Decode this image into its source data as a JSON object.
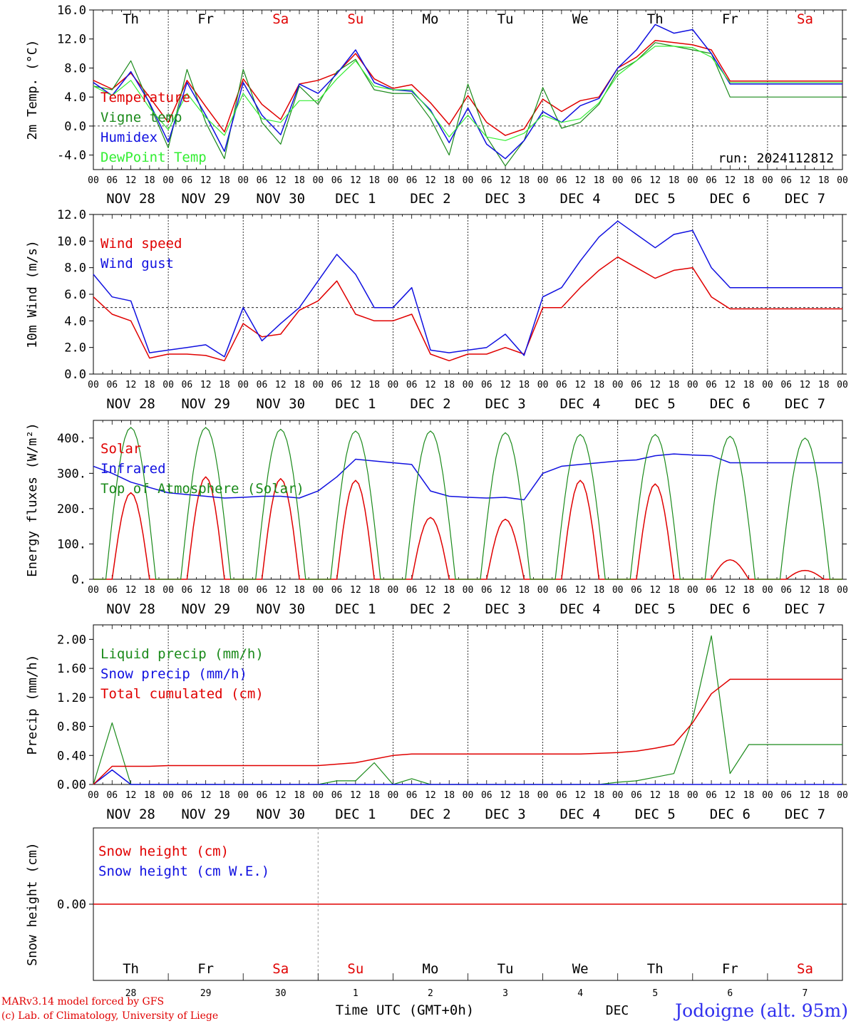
{
  "credits": {
    "line1": "MARv3.14 model forced by GFS",
    "line2": "(c) Lab. of Climatology, University of Liege"
  },
  "footer": {
    "time_label": "Time UTC (GMT+0h)",
    "dec_label": "DEC",
    "location": "Jodoigne (alt. 95m)"
  },
  "days": {
    "weekdays": [
      "Th",
      "Fr",
      "Sa",
      "Su",
      "Mo",
      "Tu",
      "We",
      "Th",
      "Fr",
      "Sa"
    ],
    "weekend": [
      false,
      false,
      true,
      true,
      false,
      false,
      false,
      false,
      false,
      true
    ],
    "dates": [
      "NOV 28",
      "NOV 29",
      "NOV 30",
      "DEC  1",
      "DEC  2",
      "DEC  3",
      "DEC  4",
      "DEC  5",
      "DEC  6",
      "DEC  7"
    ],
    "day_numbers": [
      "28",
      "29",
      "30",
      "1",
      "2",
      "3",
      "4",
      "5",
      "6",
      "7"
    ],
    "hour_ticks": [
      "00",
      "06",
      "12",
      "18"
    ],
    "final_hour": "00"
  },
  "colors": {
    "red": "#e00000",
    "green": "#1a8a1a",
    "blue": "#1010e0",
    "light_green": "#33ee33",
    "weekend_text": "#e00000",
    "text": "#000000"
  },
  "chart_data": [
    {
      "type": "line",
      "ylabel": "2m Temp. (°C)",
      "ylim": [
        -6,
        16
      ],
      "yticks": [
        "-4.0",
        "0.0",
        "4.0",
        "8.0",
        "12.0",
        "16.0"
      ],
      "reference_line": 0,
      "annotation": "run: 2024112812",
      "x_hours": [
        0,
        6,
        12,
        18,
        24,
        30,
        36,
        42,
        48,
        54,
        60,
        66,
        72,
        78,
        84,
        90,
        96,
        102,
        108,
        114,
        120,
        126,
        132,
        138,
        144,
        150,
        156,
        162,
        168,
        174,
        180,
        186,
        192,
        198,
        204,
        210,
        216,
        222,
        228,
        234,
        240
      ],
      "series": [
        {
          "name": "Temperature",
          "color": "red",
          "values": [
            6.3,
            5.1,
            7.3,
            4.0,
            0.5,
            6.3,
            2.7,
            -0.8,
            6.5,
            3.0,
            0.9,
            5.8,
            6.3,
            7.3,
            10.0,
            6.5,
            5.2,
            5.7,
            3.2,
            0.2,
            4.2,
            0.5,
            -1.3,
            -0.4,
            3.7,
            2.0,
            3.5,
            4.0,
            8.0,
            9.5,
            11.8,
            11.5,
            11.2,
            10.5,
            6.2,
            6.2,
            6.2,
            6.2,
            6.2,
            6.2,
            6.2
          ]
        },
        {
          "name": "Vigne temp",
          "color": "green",
          "values": [
            5.5,
            5.0,
            9.0,
            3.0,
            -3.0,
            7.8,
            0.5,
            -4.5,
            7.8,
            0.5,
            -2.5,
            5.5,
            3.0,
            7.5,
            9.2,
            5.0,
            4.5,
            4.5,
            1.0,
            -4.0,
            5.8,
            -1.5,
            -5.5,
            -2.0,
            5.3,
            -0.3,
            0.5,
            3.0,
            7.5,
            9.0,
            11.5,
            11.0,
            10.5,
            10.0,
            4.0,
            4.0,
            4.0,
            4.0,
            4.0,
            4.0,
            4.0
          ]
        },
        {
          "name": "Humidex",
          "color": "blue",
          "values": [
            6.0,
            4.2,
            7.5,
            3.2,
            -2.2,
            6.0,
            1.5,
            -3.5,
            6.0,
            1.5,
            -1.2,
            5.8,
            4.5,
            7.2,
            10.5,
            6.0,
            5.0,
            4.8,
            2.2,
            -2.3,
            2.5,
            -2.5,
            -4.5,
            -2.0,
            2.0,
            0.5,
            2.8,
            3.8,
            8.0,
            10.5,
            14.0,
            12.8,
            13.3,
            10.0,
            5.8,
            5.8,
            5.8,
            5.8,
            5.8,
            5.8,
            5.8
          ]
        },
        {
          "name": "DewPoint Temp",
          "color": "light_green",
          "values": [
            5.5,
            4.2,
            6.3,
            2.5,
            -0.5,
            4.5,
            1.2,
            -1.3,
            4.5,
            1.0,
            0.5,
            3.5,
            3.5,
            6.5,
            9.0,
            5.5,
            5.0,
            5.0,
            2.0,
            -1.5,
            1.5,
            -1.5,
            -2.0,
            -1.0,
            1.5,
            0.5,
            1.0,
            3.2,
            7.0,
            9.0,
            11.0,
            11.0,
            10.8,
            9.5,
            6.0,
            6.0,
            6.0,
            6.0,
            6.0,
            6.0,
            6.0
          ]
        }
      ]
    },
    {
      "type": "line",
      "ylabel": "10m Wind (m/s)",
      "ylim": [
        0,
        12
      ],
      "yticks": [
        "0.0",
        "2.0",
        "4.0",
        "6.0",
        "8.0",
        "10.0",
        "12.0"
      ],
      "reference_line": 5,
      "x_hours": [
        0,
        6,
        12,
        18,
        24,
        30,
        36,
        42,
        48,
        54,
        60,
        66,
        72,
        78,
        84,
        90,
        96,
        102,
        108,
        114,
        120,
        126,
        132,
        138,
        144,
        150,
        156,
        162,
        168,
        174,
        180,
        186,
        192,
        198,
        204,
        210,
        216,
        222,
        228,
        234,
        240
      ],
      "series": [
        {
          "name": "Wind speed",
          "color": "red",
          "values": [
            5.8,
            4.5,
            4.0,
            1.2,
            1.5,
            1.5,
            1.4,
            1.0,
            3.8,
            2.8,
            3.0,
            4.8,
            5.5,
            7.0,
            4.5,
            4.0,
            4.0,
            4.5,
            1.5,
            1.0,
            1.5,
            1.5,
            2.0,
            1.5,
            5.0,
            5.0,
            6.5,
            7.8,
            8.8,
            8.0,
            7.2,
            7.8,
            8.0,
            5.8,
            4.9,
            4.9,
            4.9,
            4.9,
            4.9,
            4.9,
            4.9
          ]
        },
        {
          "name": "Wind gust",
          "color": "blue",
          "values": [
            7.5,
            5.8,
            5.5,
            1.6,
            1.8,
            2.0,
            2.2,
            1.3,
            5.0,
            2.5,
            3.8,
            5.0,
            7.0,
            9.0,
            7.5,
            5.0,
            5.0,
            6.5,
            1.8,
            1.6,
            1.8,
            2.0,
            3.0,
            1.4,
            5.8,
            6.5,
            8.5,
            10.3,
            11.5,
            10.5,
            9.5,
            10.5,
            10.8,
            8.0,
            6.5,
            6.5,
            6.5,
            6.5,
            6.5,
            6.5,
            6.5
          ]
        }
      ]
    },
    {
      "type": "line",
      "ylabel": "Energy fluxes (W/m²)",
      "ylim": [
        0,
        450
      ],
      "yticks": [
        "0.",
        "100.",
        "200.",
        "300.",
        "400."
      ],
      "x_hours": [
        0,
        6,
        12,
        18,
        24,
        30,
        36,
        42,
        48,
        54,
        60,
        66,
        72,
        78,
        84,
        90,
        96,
        102,
        108,
        114,
        120,
        126,
        132,
        138,
        144,
        150,
        156,
        162,
        168,
        174,
        180,
        186,
        192,
        198,
        204,
        210,
        216,
        222,
        228,
        234,
        240
      ],
      "series": [
        {
          "name": "Solar",
          "color": "red",
          "peaks": [
            245,
            290,
            285,
            280,
            175,
            170,
            280,
            270,
            55,
            25
          ]
        },
        {
          "name": "Infrared",
          "color": "blue",
          "values": [
            320,
            300,
            275,
            260,
            245,
            240,
            235,
            230,
            232,
            235,
            235,
            230,
            250,
            290,
            340,
            335,
            330,
            325,
            250,
            235,
            232,
            230,
            232,
            225,
            300,
            320,
            325,
            330,
            335,
            338,
            350,
            355,
            352,
            350,
            330,
            330,
            330,
            330,
            330,
            330,
            330
          ]
        },
        {
          "name": "Top of Atmosphere (Solar)",
          "color": "green",
          "peaks": [
            430,
            430,
            425,
            420,
            420,
            415,
            410,
            410,
            405,
            400
          ]
        }
      ]
    },
    {
      "type": "line",
      "ylabel": "Precip (mm/h)",
      "ylim": [
        0,
        2.2
      ],
      "yticks": [
        "0.00",
        "0.40",
        "0.80",
        "1.20",
        "1.60",
        "2.00"
      ],
      "x_hours": [
        0,
        6,
        12,
        18,
        24,
        30,
        36,
        42,
        48,
        54,
        60,
        66,
        72,
        78,
        84,
        90,
        96,
        102,
        108,
        114,
        120,
        126,
        132,
        138,
        144,
        150,
        156,
        162,
        168,
        174,
        180,
        186,
        192,
        198,
        204,
        210,
        216,
        222,
        228,
        234,
        240
      ],
      "series": [
        {
          "name": "Liquid precip (mm/h)",
          "color": "green",
          "values": [
            0,
            0.85,
            0,
            0,
            0,
            0,
            0,
            0,
            0,
            0,
            0,
            0,
            0,
            0.05,
            0.05,
            0.3,
            0,
            0.08,
            0,
            0,
            0,
            0,
            0,
            0,
            0,
            0,
            0,
            0,
            0.03,
            0.05,
            0.1,
            0.15,
            0.9,
            2.05,
            0.15,
            0.55,
            0.55,
            0.55,
            0.55,
            0.55,
            0.55
          ]
        },
        {
          "name": "Snow precip (mm/h)",
          "color": "blue",
          "values": [
            0,
            0.2,
            0,
            0,
            0,
            0,
            0,
            0,
            0,
            0,
            0,
            0,
            0,
            0,
            0,
            0,
            0,
            0,
            0,
            0,
            0,
            0,
            0,
            0,
            0,
            0,
            0,
            0,
            0,
            0,
            0,
            0,
            0,
            0,
            0,
            0,
            0,
            0,
            0,
            0,
            0
          ]
        },
        {
          "name": "Total cumulated (cm)",
          "color": "red",
          "values": [
            0,
            0.25,
            0.25,
            0.25,
            0.26,
            0.26,
            0.26,
            0.26,
            0.26,
            0.26,
            0.26,
            0.26,
            0.26,
            0.28,
            0.3,
            0.35,
            0.4,
            0.42,
            0.42,
            0.42,
            0.42,
            0.42,
            0.42,
            0.42,
            0.42,
            0.42,
            0.42,
            0.43,
            0.44,
            0.46,
            0.5,
            0.55,
            0.85,
            1.25,
            1.45,
            1.45,
            1.45,
            1.45,
            1.45,
            1.45,
            1.45
          ]
        }
      ]
    },
    {
      "type": "line",
      "ylabel": "Snow height (cm)",
      "ylim": [
        -1,
        1
      ],
      "yticks": [
        "0.00"
      ],
      "series": [
        {
          "name": "Snow height (cm)",
          "color": "red",
          "values": [
            0,
            0
          ]
        },
        {
          "name": "Snow height (cm W.E.)",
          "color": "blue",
          "values": []
        }
      ]
    }
  ]
}
